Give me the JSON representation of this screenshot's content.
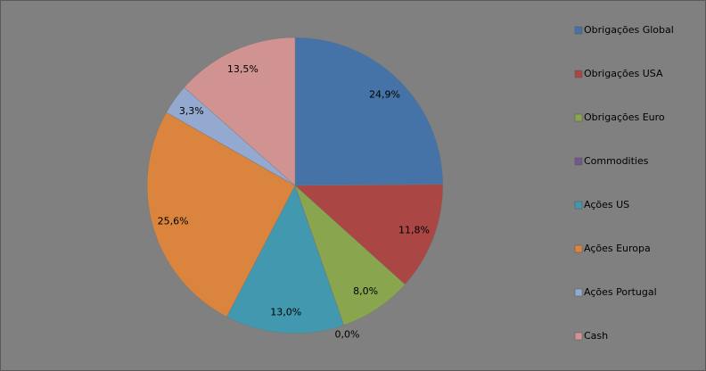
{
  "chart_data": {
    "type": "pie",
    "categories": [
      "Obrigações Global",
      "Obrigações USA",
      "Obrigações Euro",
      "Commodities",
      "Ações US",
      "Ações Europa",
      "Ações Portugal",
      "Cash"
    ],
    "values": [
      24.9,
      11.8,
      8.0,
      0.0,
      13.0,
      25.6,
      3.3,
      13.5
    ],
    "value_labels": [
      "24,9%",
      "11,8%",
      "8,0%",
      "0,0%",
      "13,0%",
      "25,6%",
      "3,3%",
      "13,5%"
    ],
    "colors": [
      "#4572a7",
      "#aa4643",
      "#89a54e",
      "#71588f",
      "#4198af",
      "#db843d",
      "#93a9cf",
      "#d19392"
    ],
    "legend": "right"
  }
}
